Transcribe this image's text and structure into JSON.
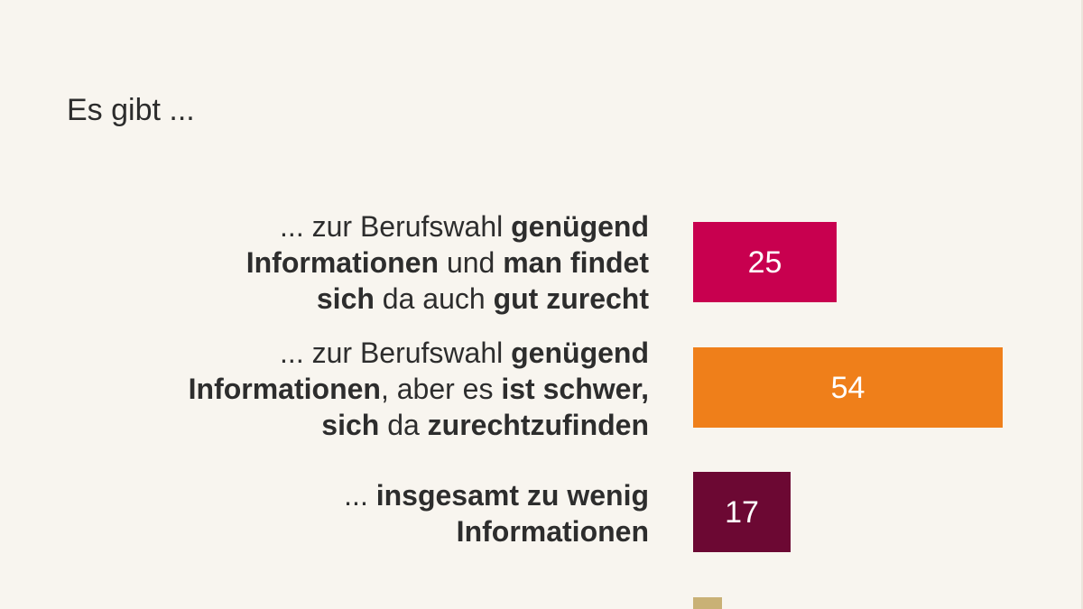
{
  "chart_data": {
    "type": "bar",
    "orientation": "horizontal",
    "title": "Es gibt ...",
    "categories": [
      "... zur Berufswahl genügend Informationen und man findet sich da auch gut zurecht",
      "... zur Berufswahl genügend Informationen, aber es ist schwer, sich da zurechtzufinden",
      "... insgesamt zu wenig Informationen",
      ""
    ],
    "values": [
      25,
      54,
      17,
      null
    ],
    "value_labels": [
      "25",
      "54",
      "17",
      ""
    ],
    "xlim": [
      0,
      54
    ],
    "colors": [
      "#c8004f",
      "#ef7f1a",
      "#6c0833",
      "#c9b176"
    ],
    "grid": false,
    "legend": "none",
    "label_segments": [
      [
        [
          {
            "t": "... zur Berufswahl ",
            "b": false
          },
          {
            "t": "genügend",
            "b": true
          }
        ],
        [
          {
            "t": "Informationen",
            "b": true
          },
          {
            "t": " und ",
            "b": false
          },
          {
            "t": "man findet",
            "b": true
          }
        ],
        [
          {
            "t": "sich",
            "b": true
          },
          {
            "t": " da auch ",
            "b": false
          },
          {
            "t": "gut zurecht",
            "b": true
          }
        ]
      ],
      [
        [
          {
            "t": "... zur Berufswahl ",
            "b": false
          },
          {
            "t": "genügend",
            "b": true
          }
        ],
        [
          {
            "t": "Informationen",
            "b": true
          },
          {
            "t": ", aber es ",
            "b": false
          },
          {
            "t": "ist schwer,",
            "b": true
          }
        ],
        [
          {
            "t": "sich",
            "b": true
          },
          {
            "t": " da ",
            "b": false
          },
          {
            "t": "zurechtzufinden",
            "b": true
          }
        ]
      ],
      [
        [
          {
            "t": "... ",
            "b": false
          },
          {
            "t": "insgesamt zu wenig",
            "b": true
          }
        ],
        [
          {
            "t": "Informationen",
            "b": true
          }
        ]
      ],
      []
    ]
  }
}
